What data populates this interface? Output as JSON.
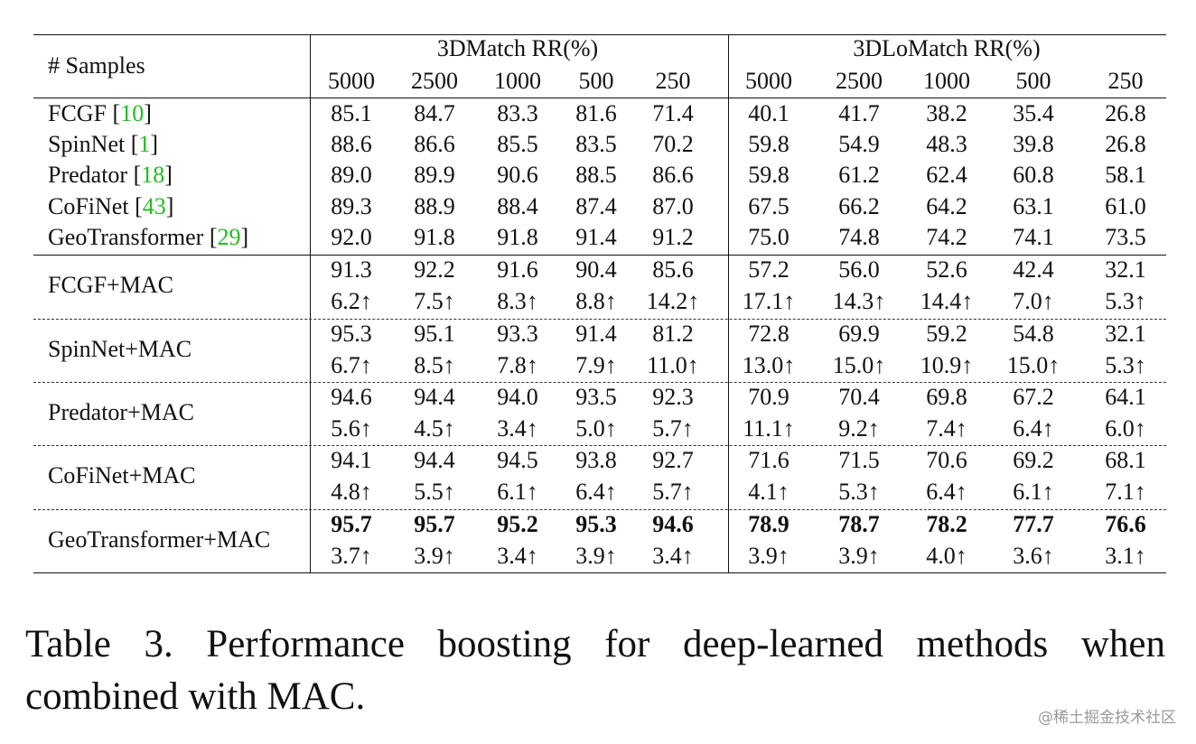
{
  "table": {
    "header": {
      "samples_label": "# Samples",
      "group1": "3DMatch RR(%)",
      "group2": "3DLoMatch RR(%)",
      "sample_sizes": [
        "5000",
        "2500",
        "1000",
        "500",
        "250"
      ]
    },
    "baselines": [
      {
        "name": "FCGF",
        "ref": "10",
        "values": [
          "85.1",
          "84.7",
          "83.3",
          "81.6",
          "71.4",
          "40.1",
          "41.7",
          "38.2",
          "35.4",
          "26.8"
        ]
      },
      {
        "name": "SpinNet",
        "ref": "1",
        "values": [
          "88.6",
          "86.6",
          "85.5",
          "83.5",
          "70.2",
          "59.8",
          "54.9",
          "48.3",
          "39.8",
          "26.8"
        ]
      },
      {
        "name": "Predator",
        "ref": "18",
        "values": [
          "89.0",
          "89.9",
          "90.6",
          "88.5",
          "86.6",
          "59.8",
          "61.2",
          "62.4",
          "60.8",
          "58.1"
        ]
      },
      {
        "name": "CoFiNet",
        "ref": "43",
        "values": [
          "89.3",
          "88.9",
          "88.4",
          "87.4",
          "87.0",
          "67.5",
          "66.2",
          "64.2",
          "63.1",
          "61.0"
        ]
      },
      {
        "name": "GeoTransformer",
        "ref": "29",
        "values": [
          "92.0",
          "91.8",
          "91.8",
          "91.4",
          "91.2",
          "75.0",
          "74.8",
          "74.2",
          "74.1",
          "73.5"
        ]
      }
    ],
    "mac_rows": [
      {
        "name": "FCGF+MAC",
        "values": [
          "91.3",
          "92.2",
          "91.6",
          "90.4",
          "85.6",
          "57.2",
          "56.0",
          "52.6",
          "42.4",
          "32.1"
        ],
        "gains": [
          "6.2↑",
          "7.5↑",
          "8.3↑",
          "8.8↑",
          "14.2↑",
          "17.1↑",
          "14.3↑",
          "14.4↑",
          "7.0↑",
          "5.3↑"
        ],
        "bold": false
      },
      {
        "name": "SpinNet+MAC",
        "values": [
          "95.3",
          "95.1",
          "93.3",
          "91.4",
          "81.2",
          "72.8",
          "69.9",
          "59.2",
          "54.8",
          "32.1"
        ],
        "gains": [
          "6.7↑",
          "8.5↑",
          "7.8↑",
          "7.9↑",
          "11.0↑",
          "13.0↑",
          "15.0↑",
          "10.9↑",
          "15.0↑",
          "5.3↑"
        ],
        "bold": false
      },
      {
        "name": "Predator+MAC",
        "values": [
          "94.6",
          "94.4",
          "94.0",
          "93.5",
          "92.3",
          "70.9",
          "70.4",
          "69.8",
          "67.2",
          "64.1"
        ],
        "gains": [
          "5.6↑",
          "4.5↑",
          "3.4↑",
          "5.0↑",
          "5.7↑",
          "11.1↑",
          "9.2↑",
          "7.4↑",
          "6.4↑",
          "6.0↑"
        ],
        "bold": false
      },
      {
        "name": "CoFiNet+MAC",
        "values": [
          "94.1",
          "94.4",
          "94.5",
          "93.8",
          "92.7",
          "71.6",
          "71.5",
          "70.6",
          "69.2",
          "68.1"
        ],
        "gains": [
          "4.8↑",
          "5.5↑",
          "6.1↑",
          "6.4↑",
          "5.7↑",
          "4.1↑",
          "5.3↑",
          "6.4↑",
          "6.1↑",
          "7.1↑"
        ],
        "bold": false
      },
      {
        "name": "GeoTransformer+MAC",
        "values": [
          "95.7",
          "95.7",
          "95.2",
          "95.3",
          "94.6",
          "78.9",
          "78.7",
          "78.2",
          "77.7",
          "76.6"
        ],
        "gains": [
          "3.7↑",
          "3.9↑",
          "3.4↑",
          "3.9↑",
          "3.4↑",
          "3.9↑",
          "3.9↑",
          "4.0↑",
          "3.6↑",
          "3.1↑"
        ],
        "bold": true
      }
    ]
  },
  "caption": {
    "line1": "Table 3.  Performance boosting for deep-learned methods when",
    "line2": "combined with MAC."
  },
  "watermark": "@稀土掘金技术社区",
  "colors": {
    "text": "#111111",
    "ref_link": "#22bb22",
    "watermark": "#9a9a9a"
  }
}
